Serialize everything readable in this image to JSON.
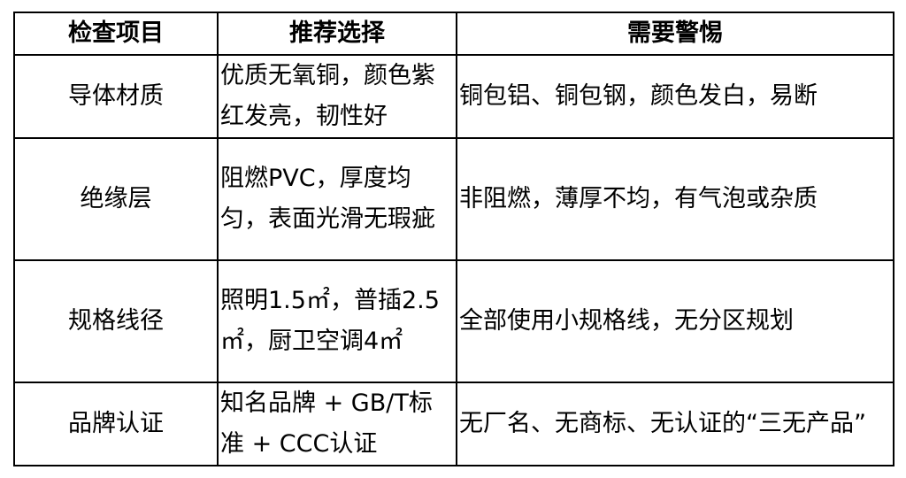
{
  "headers": [
    "检查项目",
    "推荐选择",
    "需要警惕"
  ],
  "rows": [
    {
      "item": "导体材质",
      "recommend": "优质无氧铜，颜色紫红发亮，韧性好",
      "beware": "铜包铝、铜包钢，颜色发白，易断"
    },
    {
      "item": "绝缘层",
      "recommend": "阻燃PVC，厚度均匀，表面光滑无瑕疵",
      "beware": "非阻燃，薄厚不均，有气泡或杂质"
    },
    {
      "item": "规格线径",
      "recommend": "照明1.5㎡，普插2.5㎡，厨卫空调4㎡",
      "beware": "全部使用小规格线，无分区规划"
    },
    {
      "item": "品牌认证",
      "recommend": "知名品牌 + GB/T标准 + CCC认证",
      "beware": "无厂名、无商标、无认证的“三无产品”"
    }
  ]
}
